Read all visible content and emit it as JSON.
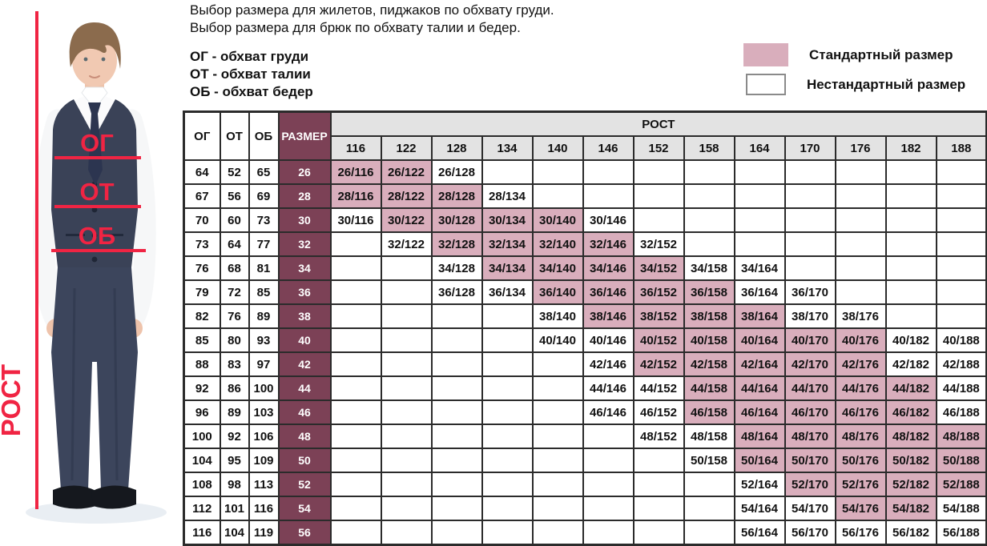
{
  "colors": {
    "std-pink": "#d9aebc",
    "size-maroon": "#7c4156",
    "header-gray": "#e3e3e3",
    "grid": "#2b2b2b",
    "accent-red": "#f02443",
    "text": "#111111"
  },
  "intro": {
    "line1": "Выбор размера для жилетов, пиджаков по обхвату груди.",
    "line2": "Выбор размера для брюк по обхвату талии и бедер.",
    "abbr1": "ОГ - обхват груди",
    "abbr2": "ОТ - обхват талии",
    "abbr3": "ОБ - обхват бедер"
  },
  "legend": {
    "standard_label": "Стандартный размер",
    "nonstandard_label": "Нестандартный размер"
  },
  "figure_labels": {
    "chest": "ОГ",
    "waist": "ОТ",
    "hips": "ОБ",
    "height": "РОСТ"
  },
  "chart_data": {
    "type": "table",
    "corner_headers": [
      "ОГ",
      "ОТ",
      "ОБ"
    ],
    "size_header": "РАЗМЕР",
    "height_group_label": "РОСТ",
    "heights": [
      116,
      122,
      128,
      134,
      140,
      146,
      152,
      158,
      164,
      170,
      176,
      182,
      188
    ],
    "legend_note": "1 = стандартный размер (розовый), 0 = нестандартный размер (белый)",
    "rows": [
      {
        "og": 64,
        "ot": 52,
        "ob": 65,
        "size": 26,
        "cells": [
          [
            "26/116",
            1
          ],
          [
            "26/122",
            1
          ],
          [
            "26/128",
            0
          ]
        ]
      },
      {
        "og": 67,
        "ot": 56,
        "ob": 69,
        "size": 28,
        "cells": [
          [
            "28/116",
            1
          ],
          [
            "28/122",
            1
          ],
          [
            "28/128",
            1
          ],
          [
            "28/134",
            0
          ]
        ]
      },
      {
        "og": 70,
        "ot": 60,
        "ob": 73,
        "size": 30,
        "cells": [
          [
            "30/116",
            0
          ],
          [
            "30/122",
            1
          ],
          [
            "30/128",
            1
          ],
          [
            "30/134",
            1
          ],
          [
            "30/140",
            1
          ],
          [
            "30/146",
            0
          ]
        ]
      },
      {
        "og": 73,
        "ot": 64,
        "ob": 77,
        "size": 32,
        "cells": [
          [
            "32/122",
            0
          ],
          [
            "32/128",
            1
          ],
          [
            "32/134",
            1
          ],
          [
            "32/140",
            1
          ],
          [
            "32/146",
            1
          ],
          [
            "32/152",
            0
          ]
        ]
      },
      {
        "og": 76,
        "ot": 68,
        "ob": 81,
        "size": 34,
        "cells": [
          [
            "34/128",
            0
          ],
          [
            "34/134",
            1
          ],
          [
            "34/140",
            1
          ],
          [
            "34/146",
            1
          ],
          [
            "34/152",
            1
          ],
          [
            "34/158",
            0
          ],
          [
            "34/164",
            0
          ]
        ]
      },
      {
        "og": 79,
        "ot": 72,
        "ob": 85,
        "size": 36,
        "cells": [
          [
            "36/128",
            0
          ],
          [
            "36/134",
            0
          ],
          [
            "36/140",
            1
          ],
          [
            "36/146",
            1
          ],
          [
            "36/152",
            1
          ],
          [
            "36/158",
            1
          ],
          [
            "36/164",
            0
          ],
          [
            "36/170",
            0
          ]
        ]
      },
      {
        "og": 82,
        "ot": 76,
        "ob": 89,
        "size": 38,
        "cells": [
          [
            "38/140",
            0
          ],
          [
            "38/146",
            1
          ],
          [
            "38/152",
            1
          ],
          [
            "38/158",
            1
          ],
          [
            "38/164",
            1
          ],
          [
            "38/170",
            0
          ],
          [
            "38/176",
            0
          ]
        ]
      },
      {
        "og": 85,
        "ot": 80,
        "ob": 93,
        "size": 40,
        "cells": [
          [
            "40/140",
            0
          ],
          [
            "40/146",
            0
          ],
          [
            "40/152",
            1
          ],
          [
            "40/158",
            1
          ],
          [
            "40/164",
            1
          ],
          [
            "40/170",
            1
          ],
          [
            "40/176",
            1
          ],
          [
            "40/182",
            0
          ],
          [
            "40/188",
            0
          ]
        ]
      },
      {
        "og": 88,
        "ot": 83,
        "ob": 97,
        "size": 42,
        "cells": [
          [
            "42/146",
            0
          ],
          [
            "42/152",
            1
          ],
          [
            "42/158",
            1
          ],
          [
            "42/164",
            1
          ],
          [
            "42/170",
            1
          ],
          [
            "42/176",
            1
          ],
          [
            "42/182",
            0
          ],
          [
            "42/188",
            0
          ]
        ]
      },
      {
        "og": 92,
        "ot": 86,
        "ob": 100,
        "size": 44,
        "cells": [
          [
            "44/146",
            0
          ],
          [
            "44/152",
            0
          ],
          [
            "44/158",
            1
          ],
          [
            "44/164",
            1
          ],
          [
            "44/170",
            1
          ],
          [
            "44/176",
            1
          ],
          [
            "44/182",
            1
          ],
          [
            "44/188",
            0
          ]
        ]
      },
      {
        "og": 96,
        "ot": 89,
        "ob": 103,
        "size": 46,
        "cells": [
          [
            "46/146",
            0
          ],
          [
            "46/152",
            0
          ],
          [
            "46/158",
            1
          ],
          [
            "46/164",
            1
          ],
          [
            "46/170",
            1
          ],
          [
            "46/176",
            1
          ],
          [
            "46/182",
            1
          ],
          [
            "46/188",
            0
          ]
        ]
      },
      {
        "og": 100,
        "ot": 92,
        "ob": 106,
        "size": 48,
        "cells": [
          [
            "48/152",
            0
          ],
          [
            "48/158",
            0
          ],
          [
            "48/164",
            1
          ],
          [
            "48/170",
            1
          ],
          [
            "48/176",
            1
          ],
          [
            "48/182",
            1
          ],
          [
            "48/188",
            1
          ]
        ]
      },
      {
        "og": 104,
        "ot": 95,
        "ob": 109,
        "size": 50,
        "cells": [
          [
            "50/158",
            0
          ],
          [
            "50/164",
            1
          ],
          [
            "50/170",
            1
          ],
          [
            "50/176",
            1
          ],
          [
            "50/182",
            1
          ],
          [
            "50/188",
            1
          ]
        ]
      },
      {
        "og": 108,
        "ot": 98,
        "ob": 113,
        "size": 52,
        "cells": [
          [
            "52/164",
            0
          ],
          [
            "52/170",
            1
          ],
          [
            "52/176",
            1
          ],
          [
            "52/182",
            1
          ],
          [
            "52/188",
            1
          ]
        ]
      },
      {
        "og": 112,
        "ot": 101,
        "ob": 116,
        "size": 54,
        "cells": [
          [
            "54/164",
            0
          ],
          [
            "54/170",
            0
          ],
          [
            "54/176",
            1
          ],
          [
            "54/182",
            1
          ],
          [
            "54/188",
            0
          ]
        ]
      },
      {
        "og": 116,
        "ot": 104,
        "ob": 119,
        "size": 56,
        "cells": [
          [
            "56/164",
            0
          ],
          [
            "56/170",
            0
          ],
          [
            "56/176",
            0
          ],
          [
            "56/182",
            0
          ],
          [
            "56/188",
            0
          ]
        ]
      }
    ]
  }
}
